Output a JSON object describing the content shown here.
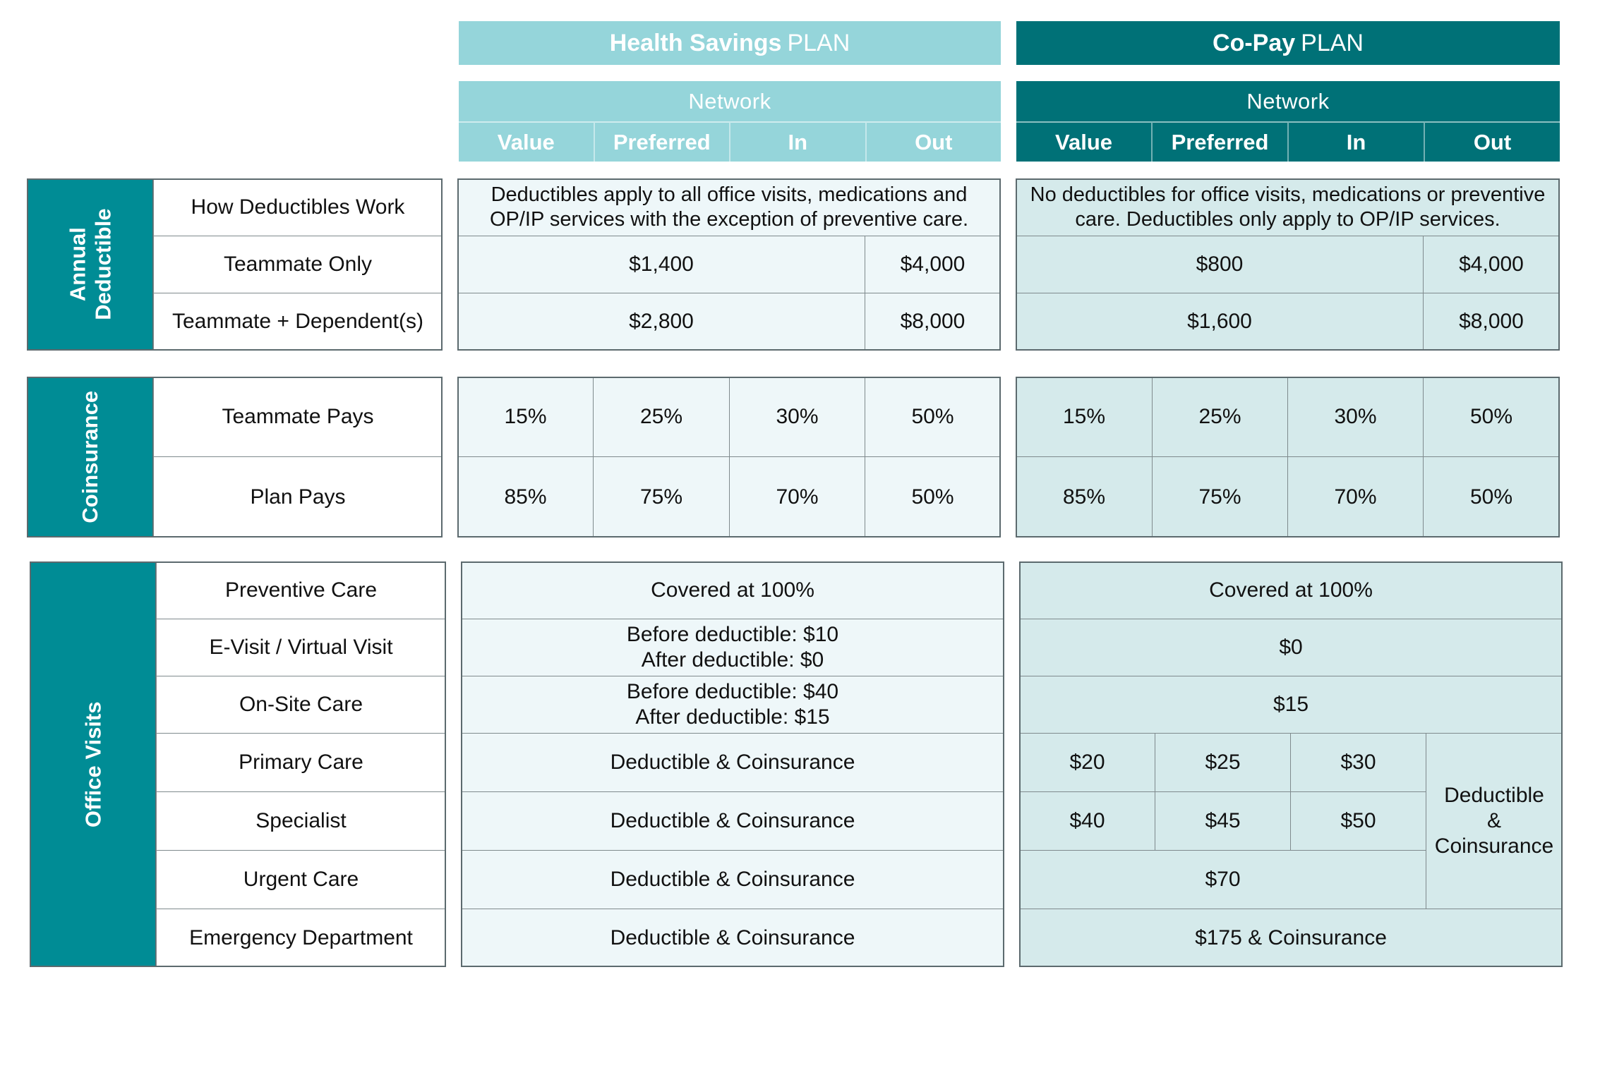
{
  "plans": {
    "hsa": {
      "name_bold": "Health Savings",
      "name_plain": "PLAN",
      "network_label": "Network",
      "tiers": [
        "Value",
        "Preferred",
        "In",
        "Out"
      ]
    },
    "copay": {
      "name_bold": "Co-Pay",
      "name_plain": "PLAN",
      "network_label": "Network",
      "tiers": [
        "Value",
        "Preferred",
        "In",
        "Out"
      ]
    }
  },
  "annual_deductible": {
    "section_label_line1": "Annual",
    "section_label_line2": "Deductible",
    "rows": {
      "how": {
        "label": "How Deductibles Work",
        "hsa_line1": "Deductibles apply to all office visits, medications and",
        "hsa_line2": "OP/IP services with the exception of preventive care.",
        "cp_line1": "No deductibles for office visits, medications or preventive",
        "cp_line2": "care. Deductibles only apply to OP/IP services."
      },
      "teammate_only": {
        "label": "Teammate Only",
        "hsa_network": "$1,400",
        "hsa_out": "$4,000",
        "cp_network": "$800",
        "cp_out": "$4,000"
      },
      "teammate_dep": {
        "label": "Teammate + Dependent(s)",
        "hsa_network": "$2,800",
        "hsa_out": "$8,000",
        "cp_network": "$1,600",
        "cp_out": "$8,000"
      }
    }
  },
  "coinsurance": {
    "section_label": "Coinsurance",
    "rows": {
      "teammate_pays": {
        "label": "Teammate Pays",
        "hsa": [
          "15%",
          "25%",
          "30%",
          "50%"
        ],
        "cp": [
          "15%",
          "25%",
          "30%",
          "50%"
        ]
      },
      "plan_pays": {
        "label": "Plan Pays",
        "hsa": [
          "85%",
          "75%",
          "70%",
          "50%"
        ],
        "cp": [
          "85%",
          "75%",
          "70%",
          "50%"
        ]
      }
    }
  },
  "office_visits": {
    "section_label": "Office Visits",
    "rows": {
      "preventive": {
        "label": "Preventive Care",
        "hsa": "Covered at 100%",
        "cp": "Covered at 100%"
      },
      "evisit": {
        "label": "E-Visit / Virtual Visit",
        "hsa_line1": "Before deductible: $10",
        "hsa_line2": "After deductible: $0",
        "cp": "$0"
      },
      "onsite": {
        "label": "On-Site Care",
        "hsa_line1": "Before deductible: $40",
        "hsa_line2": "After deductible: $15",
        "cp": "$15"
      },
      "primary": {
        "label": "Primary Care",
        "hsa": "Deductible & Coinsurance",
        "cp": [
          "$20",
          "$25",
          "$30"
        ]
      },
      "specialist": {
        "label": "Specialist",
        "hsa": "Deductible & Coinsurance",
        "cp": [
          "$40",
          "$45",
          "$50"
        ]
      },
      "urgent": {
        "label": "Urgent Care",
        "hsa": "Deductible & Coinsurance",
        "cp": "$70"
      },
      "emergency": {
        "label": "Emergency Department",
        "hsa": "Deductible & Coinsurance",
        "cp": "$175 & Coinsurance"
      }
    },
    "cp_out_merged_line1": "Deductible",
    "cp_out_merged_line2": "&",
    "cp_out_merged_line3": "Coinsurance"
  }
}
